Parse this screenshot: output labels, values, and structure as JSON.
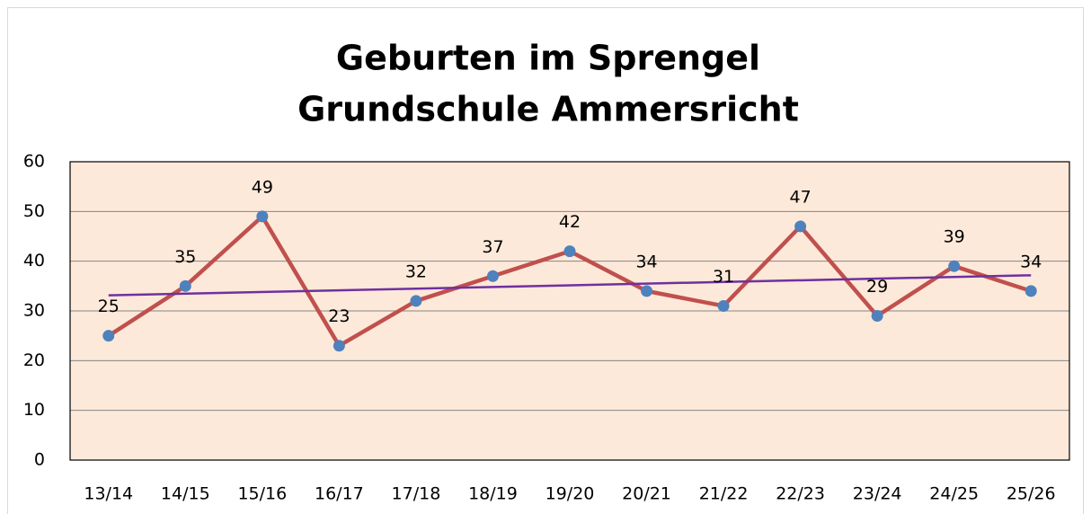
{
  "chart_data": {
    "type": "line",
    "title": "Geburten im Sprengel",
    "subtitle": "Grundschule Ammersricht",
    "categories": [
      "13/14",
      "14/15",
      "15/16",
      "16/17",
      "17/18",
      "18/19",
      "19/20",
      "20/21",
      "21/22",
      "22/23",
      "23/24",
      "24/25",
      "25/26"
    ],
    "values": [
      25,
      35,
      49,
      23,
      32,
      37,
      42,
      34,
      31,
      47,
      29,
      39,
      34
    ],
    "color": "#c0504d",
    "marker_color": "#4f81bd",
    "trendline": "linear",
    "trend_color": "#7030a0",
    "ylim": [
      0,
      60
    ],
    "yticks": [
      0,
      10,
      20,
      30,
      40,
      50,
      60
    ],
    "grid": true,
    "plot_background": "#fde9d9"
  }
}
